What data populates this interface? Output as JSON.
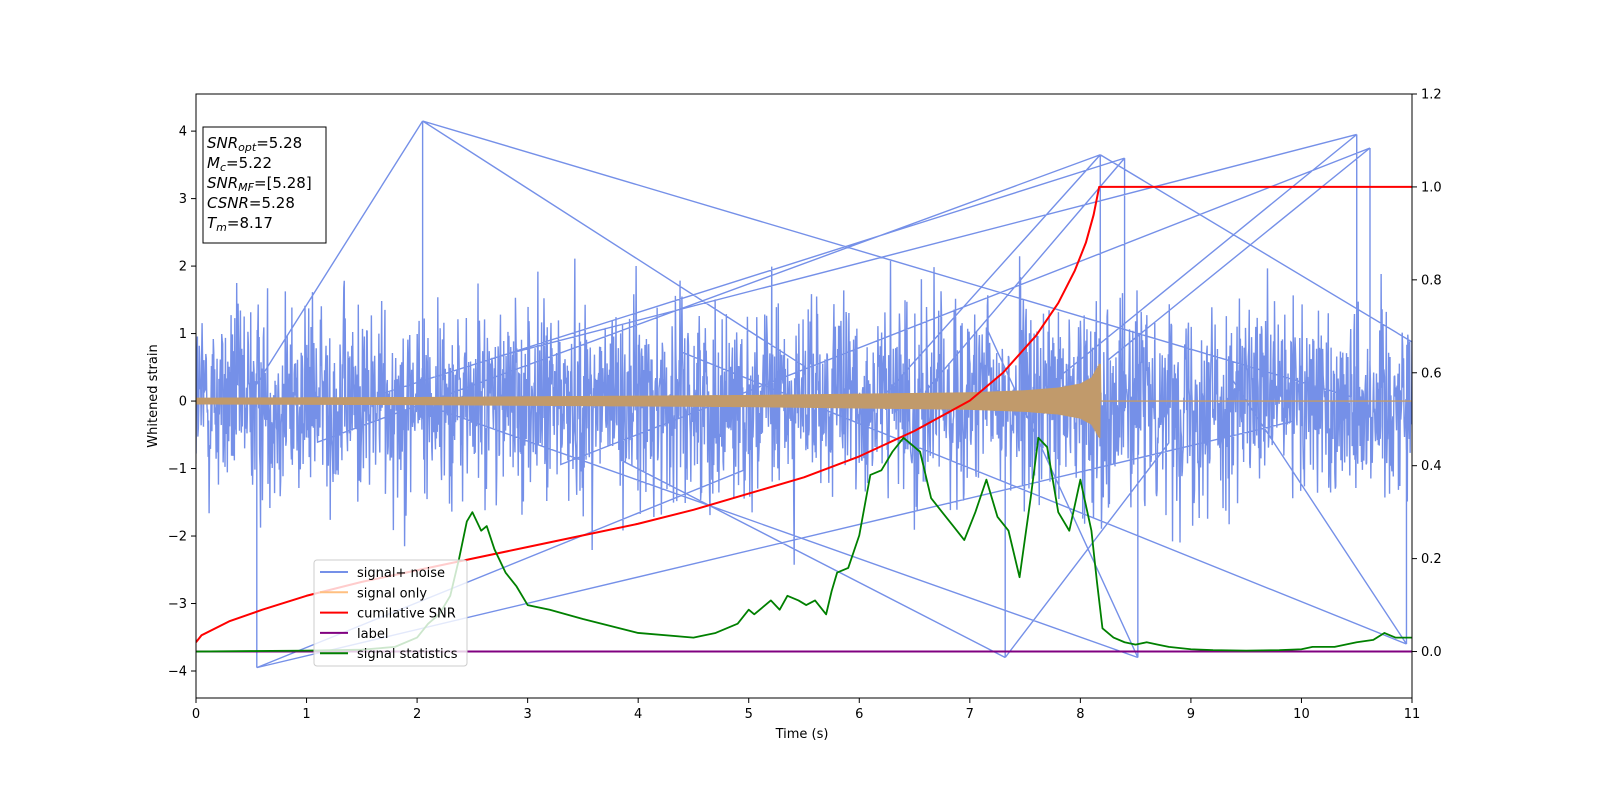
{
  "chart_data": {
    "type": "line",
    "xlabel": "Time (s)",
    "ylabel": "Whitened strain",
    "xlim": [
      0,
      11
    ],
    "ylim": [
      -4.4,
      4.55
    ],
    "ylim_right": [
      -0.1,
      1.2
    ],
    "x_ticks": [
      0,
      1,
      2,
      3,
      4,
      5,
      6,
      7,
      8,
      9,
      10,
      11
    ],
    "y_ticks": [
      -4,
      -3,
      -2,
      -1,
      0,
      1,
      2,
      3,
      4
    ],
    "y_ticks_right": [
      "0.0",
      "0.2",
      "0.4",
      "0.6",
      "0.8",
      "1.0",
      "1.2"
    ],
    "grid": false,
    "legend_position": "lower-left",
    "annotation": [
      {
        "base": "SNR",
        "sub": "opt",
        "rest": "=5.28"
      },
      {
        "base": "M",
        "sub": "c",
        "rest": "=5.22"
      },
      {
        "base": "SNR",
        "sub": "MF",
        "rest": "=[5.28]"
      },
      {
        "base": "CSNR",
        "sub": "",
        "rest": "=5.28"
      },
      {
        "base": "T",
        "sub": "m",
        "rest": "=8.17"
      }
    ],
    "series": [
      {
        "name": "signal+ noise",
        "axis": "left",
        "color": "#7590e8",
        "description": "whitened noise with signal, roughly within ±2.5",
        "spikes": [
          [
            0.55,
            -3.95
          ],
          [
            2.05,
            4.15
          ],
          [
            8.18,
            3.65
          ],
          [
            8.4,
            3.6
          ],
          [
            8.52,
            -3.8
          ],
          [
            10.5,
            3.95
          ],
          [
            10.62,
            3.75
          ],
          [
            7.32,
            -3.8
          ],
          [
            10.95,
            -3.6
          ]
        ]
      },
      {
        "name": "signal only",
        "axis": "left",
        "color": "#c19a6b",
        "description": "chirp envelope growing to merger",
        "envelope_x": [
          0,
          2,
          4,
          5,
          6,
          7,
          7.5,
          7.8,
          8.0,
          8.1,
          8.17,
          8.18,
          11
        ],
        "envelope_y": [
          0.05,
          0.06,
          0.08,
          0.09,
          0.11,
          0.13,
          0.16,
          0.2,
          0.26,
          0.35,
          0.55,
          0.0,
          0.0
        ]
      },
      {
        "name": "cumilative SNR",
        "axis": "right",
        "color": "#ff0000",
        "x": [
          0,
          0.05,
          0.3,
          0.6,
          1.0,
          1.5,
          2.0,
          2.5,
          3.0,
          3.5,
          4.0,
          4.5,
          5.0,
          5.5,
          6.0,
          6.5,
          7.0,
          7.3,
          7.6,
          7.8,
          7.95,
          8.05,
          8.12,
          8.17,
          11
        ],
        "y": [
          0.02,
          0.035,
          0.065,
          0.09,
          0.12,
          0.15,
          0.175,
          0.2,
          0.225,
          0.25,
          0.275,
          0.305,
          0.34,
          0.375,
          0.42,
          0.475,
          0.54,
          0.6,
          0.68,
          0.75,
          0.82,
          0.88,
          0.94,
          1.0,
          1.0
        ]
      },
      {
        "name": "label",
        "axis": "right",
        "color": "#800080",
        "x": [
          0,
          11
        ],
        "y": [
          0,
          0
        ]
      },
      {
        "name": "signal statistics",
        "axis": "right",
        "color": "#008000",
        "x": [
          0,
          0.5,
          1.0,
          1.5,
          1.8,
          2.0,
          2.1,
          2.2,
          2.3,
          2.38,
          2.45,
          2.5,
          2.58,
          2.63,
          2.7,
          2.8,
          2.9,
          3.0,
          3.2,
          3.5,
          4.0,
          4.5,
          4.7,
          4.8,
          4.9,
          5.0,
          5.05,
          5.15,
          5.2,
          5.28,
          5.35,
          5.45,
          5.52,
          5.6,
          5.7,
          5.75,
          5.8,
          5.9,
          6.0,
          6.1,
          6.2,
          6.3,
          6.4,
          6.45,
          6.55,
          6.6,
          6.65,
          6.75,
          6.85,
          6.95,
          7.05,
          7.15,
          7.25,
          7.35,
          7.45,
          7.55,
          7.62,
          7.7,
          7.8,
          7.9,
          8.0,
          8.1,
          8.15,
          8.2,
          8.3,
          8.4,
          8.5,
          8.6,
          8.7,
          8.8,
          9.0,
          9.2,
          9.5,
          9.8,
          10.0,
          10.1,
          10.3,
          10.5,
          10.65,
          10.75,
          10.85,
          11.0
        ],
        "y": [
          0.0,
          0.001,
          0.002,
          0.004,
          0.01,
          0.03,
          0.06,
          0.08,
          0.12,
          0.2,
          0.28,
          0.3,
          0.26,
          0.27,
          0.22,
          0.17,
          0.14,
          0.1,
          0.09,
          0.07,
          0.04,
          0.03,
          0.04,
          0.05,
          0.06,
          0.09,
          0.08,
          0.1,
          0.11,
          0.09,
          0.12,
          0.11,
          0.1,
          0.11,
          0.08,
          0.13,
          0.17,
          0.18,
          0.25,
          0.38,
          0.39,
          0.43,
          0.46,
          0.45,
          0.43,
          0.38,
          0.33,
          0.3,
          0.27,
          0.24,
          0.3,
          0.37,
          0.29,
          0.26,
          0.16,
          0.33,
          0.46,
          0.44,
          0.3,
          0.26,
          0.37,
          0.26,
          0.15,
          0.05,
          0.03,
          0.02,
          0.015,
          0.02,
          0.015,
          0.01,
          0.005,
          0.003,
          0.002,
          0.003,
          0.005,
          0.01,
          0.01,
          0.02,
          0.025,
          0.04,
          0.03,
          0.03
        ]
      }
    ]
  }
}
